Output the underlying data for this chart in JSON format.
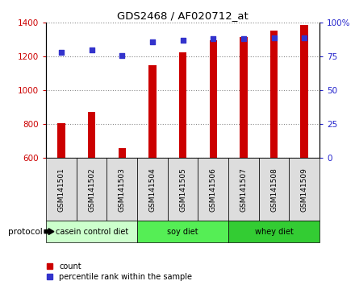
{
  "title": "GDS2468 / AF020712_at",
  "samples": [
    "GSM141501",
    "GSM141502",
    "GSM141503",
    "GSM141504",
    "GSM141505",
    "GSM141506",
    "GSM141507",
    "GSM141508",
    "GSM141509"
  ],
  "counts": [
    805,
    875,
    660,
    1150,
    1225,
    1295,
    1315,
    1355,
    1385
  ],
  "percentile_ranks": [
    78,
    80,
    76,
    86,
    87,
    88,
    88,
    89,
    89
  ],
  "ylim_left": [
    600,
    1400
  ],
  "ylim_right": [
    0,
    100
  ],
  "yticks_left": [
    600,
    800,
    1000,
    1200,
    1400
  ],
  "yticks_right": [
    0,
    25,
    50,
    75,
    100
  ],
  "bar_color": "#cc0000",
  "dot_color": "#3333cc",
  "grid_color": "#888888",
  "protocols": [
    {
      "label": "casein control diet",
      "start": 0,
      "end": 3,
      "color": "#ccffcc"
    },
    {
      "label": "soy diet",
      "start": 3,
      "end": 6,
      "color": "#55ee55"
    },
    {
      "label": "whey diet",
      "start": 6,
      "end": 9,
      "color": "#33cc33"
    }
  ],
  "protocol_label": "protocol",
  "legend_count_label": "count",
  "legend_percentile_label": "percentile rank within the sample",
  "background_color": "#ffffff",
  "plot_bg_color": "#ffffff",
  "tick_label_color_left": "#cc0000",
  "tick_label_color_right": "#2222cc",
  "sample_box_color": "#dddddd",
  "bar_width": 0.25
}
